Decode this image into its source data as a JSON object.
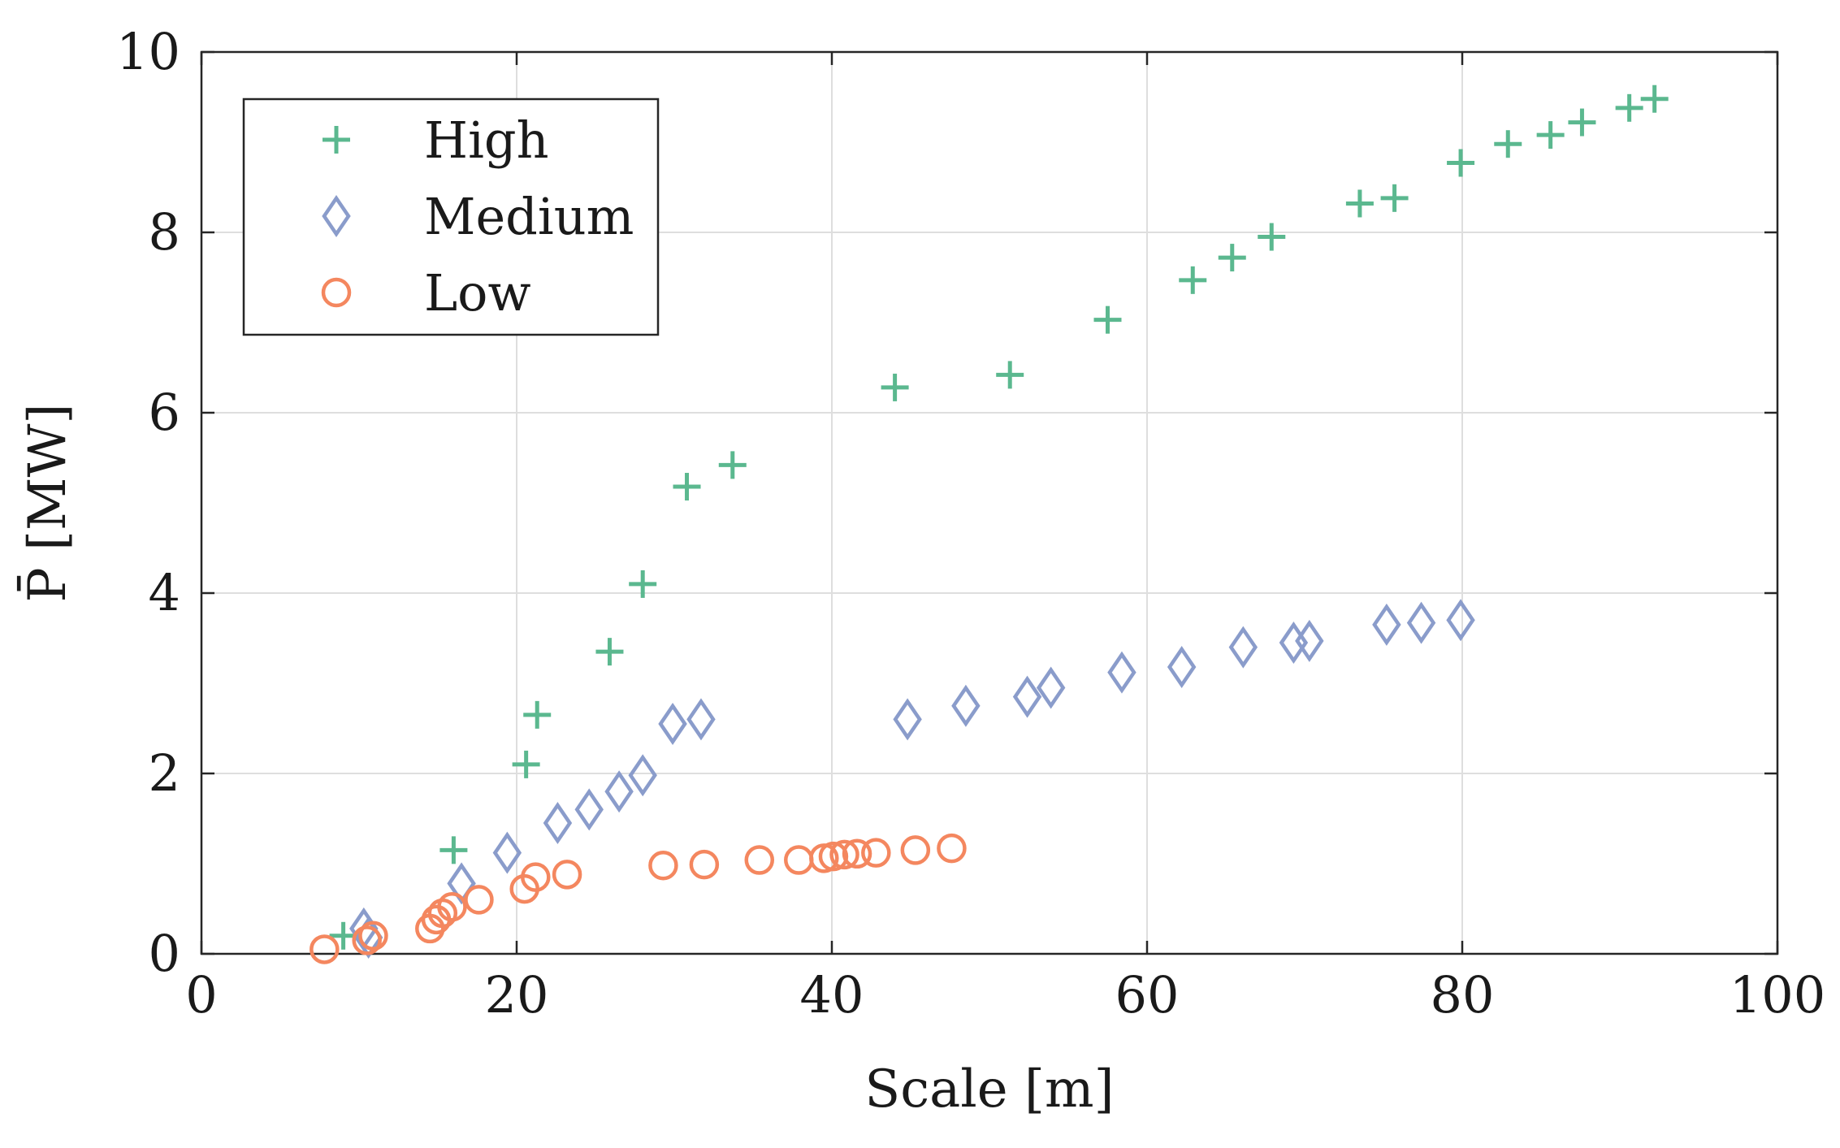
{
  "chart_data": {
    "type": "scatter",
    "title": "",
    "xlabel": "Scale [m]",
    "ylabel": "P̄ [MW]",
    "xlim": [
      0,
      100
    ],
    "ylim": [
      0,
      10
    ],
    "xticks": [
      0,
      20,
      40,
      60,
      80,
      100
    ],
    "yticks": [
      0,
      2,
      4,
      6,
      8,
      10
    ],
    "grid": true,
    "legend_position": "top-left",
    "series": [
      {
        "name": "High",
        "marker": "plus",
        "color": "#5bb88f",
        "points": [
          [
            9,
            0.2
          ],
          [
            16,
            1.15
          ],
          [
            20.6,
            2.1
          ],
          [
            21.3,
            2.65
          ],
          [
            25.9,
            3.35
          ],
          [
            28,
            4.1
          ],
          [
            30.8,
            5.18
          ],
          [
            33.7,
            5.42
          ],
          [
            44,
            6.28
          ],
          [
            51.3,
            6.42
          ],
          [
            57.5,
            7.03
          ],
          [
            62.9,
            7.47
          ],
          [
            65.4,
            7.72
          ],
          [
            67.9,
            7.95
          ],
          [
            73.5,
            8.32
          ],
          [
            75.7,
            8.38
          ],
          [
            79.9,
            8.77
          ],
          [
            82.9,
            8.98
          ],
          [
            85.6,
            9.08
          ],
          [
            87.6,
            9.22
          ],
          [
            90.6,
            9.38
          ],
          [
            92.2,
            9.48
          ]
        ]
      },
      {
        "name": "Medium",
        "marker": "diamond",
        "color": "#8a9ccb",
        "points": [
          [
            10.3,
            0.28
          ],
          [
            10.6,
            0.18
          ],
          [
            16.5,
            0.78
          ],
          [
            19.4,
            1.12
          ],
          [
            22.6,
            1.45
          ],
          [
            24.6,
            1.6
          ],
          [
            26.5,
            1.8
          ],
          [
            28,
            1.98
          ],
          [
            29.9,
            2.55
          ],
          [
            31.7,
            2.6
          ],
          [
            44.8,
            2.6
          ],
          [
            48.5,
            2.75
          ],
          [
            52.4,
            2.85
          ],
          [
            53.9,
            2.95
          ],
          [
            58.4,
            3.12
          ],
          [
            62.2,
            3.18
          ],
          [
            66.1,
            3.4
          ],
          [
            69.3,
            3.45
          ],
          [
            70.3,
            3.47
          ],
          [
            75.2,
            3.65
          ],
          [
            77.4,
            3.67
          ],
          [
            79.9,
            3.7
          ]
        ]
      },
      {
        "name": "Low",
        "marker": "circle",
        "color": "#f4875f",
        "points": [
          [
            7.8,
            0.05
          ],
          [
            10.5,
            0.15
          ],
          [
            10.9,
            0.2
          ],
          [
            14.5,
            0.28
          ],
          [
            14.9,
            0.38
          ],
          [
            15.3,
            0.45
          ],
          [
            15.9,
            0.52
          ],
          [
            17.6,
            0.6
          ],
          [
            20.5,
            0.72
          ],
          [
            21.2,
            0.85
          ],
          [
            23.2,
            0.88
          ],
          [
            29.3,
            0.98
          ],
          [
            31.9,
            0.99
          ],
          [
            35.4,
            1.04
          ],
          [
            37.9,
            1.04
          ],
          [
            39.5,
            1.06
          ],
          [
            40.1,
            1.08
          ],
          [
            40.8,
            1.1
          ],
          [
            41.6,
            1.11
          ],
          [
            42.8,
            1.12
          ],
          [
            45.3,
            1.15
          ],
          [
            47.6,
            1.17
          ]
        ]
      }
    ]
  }
}
